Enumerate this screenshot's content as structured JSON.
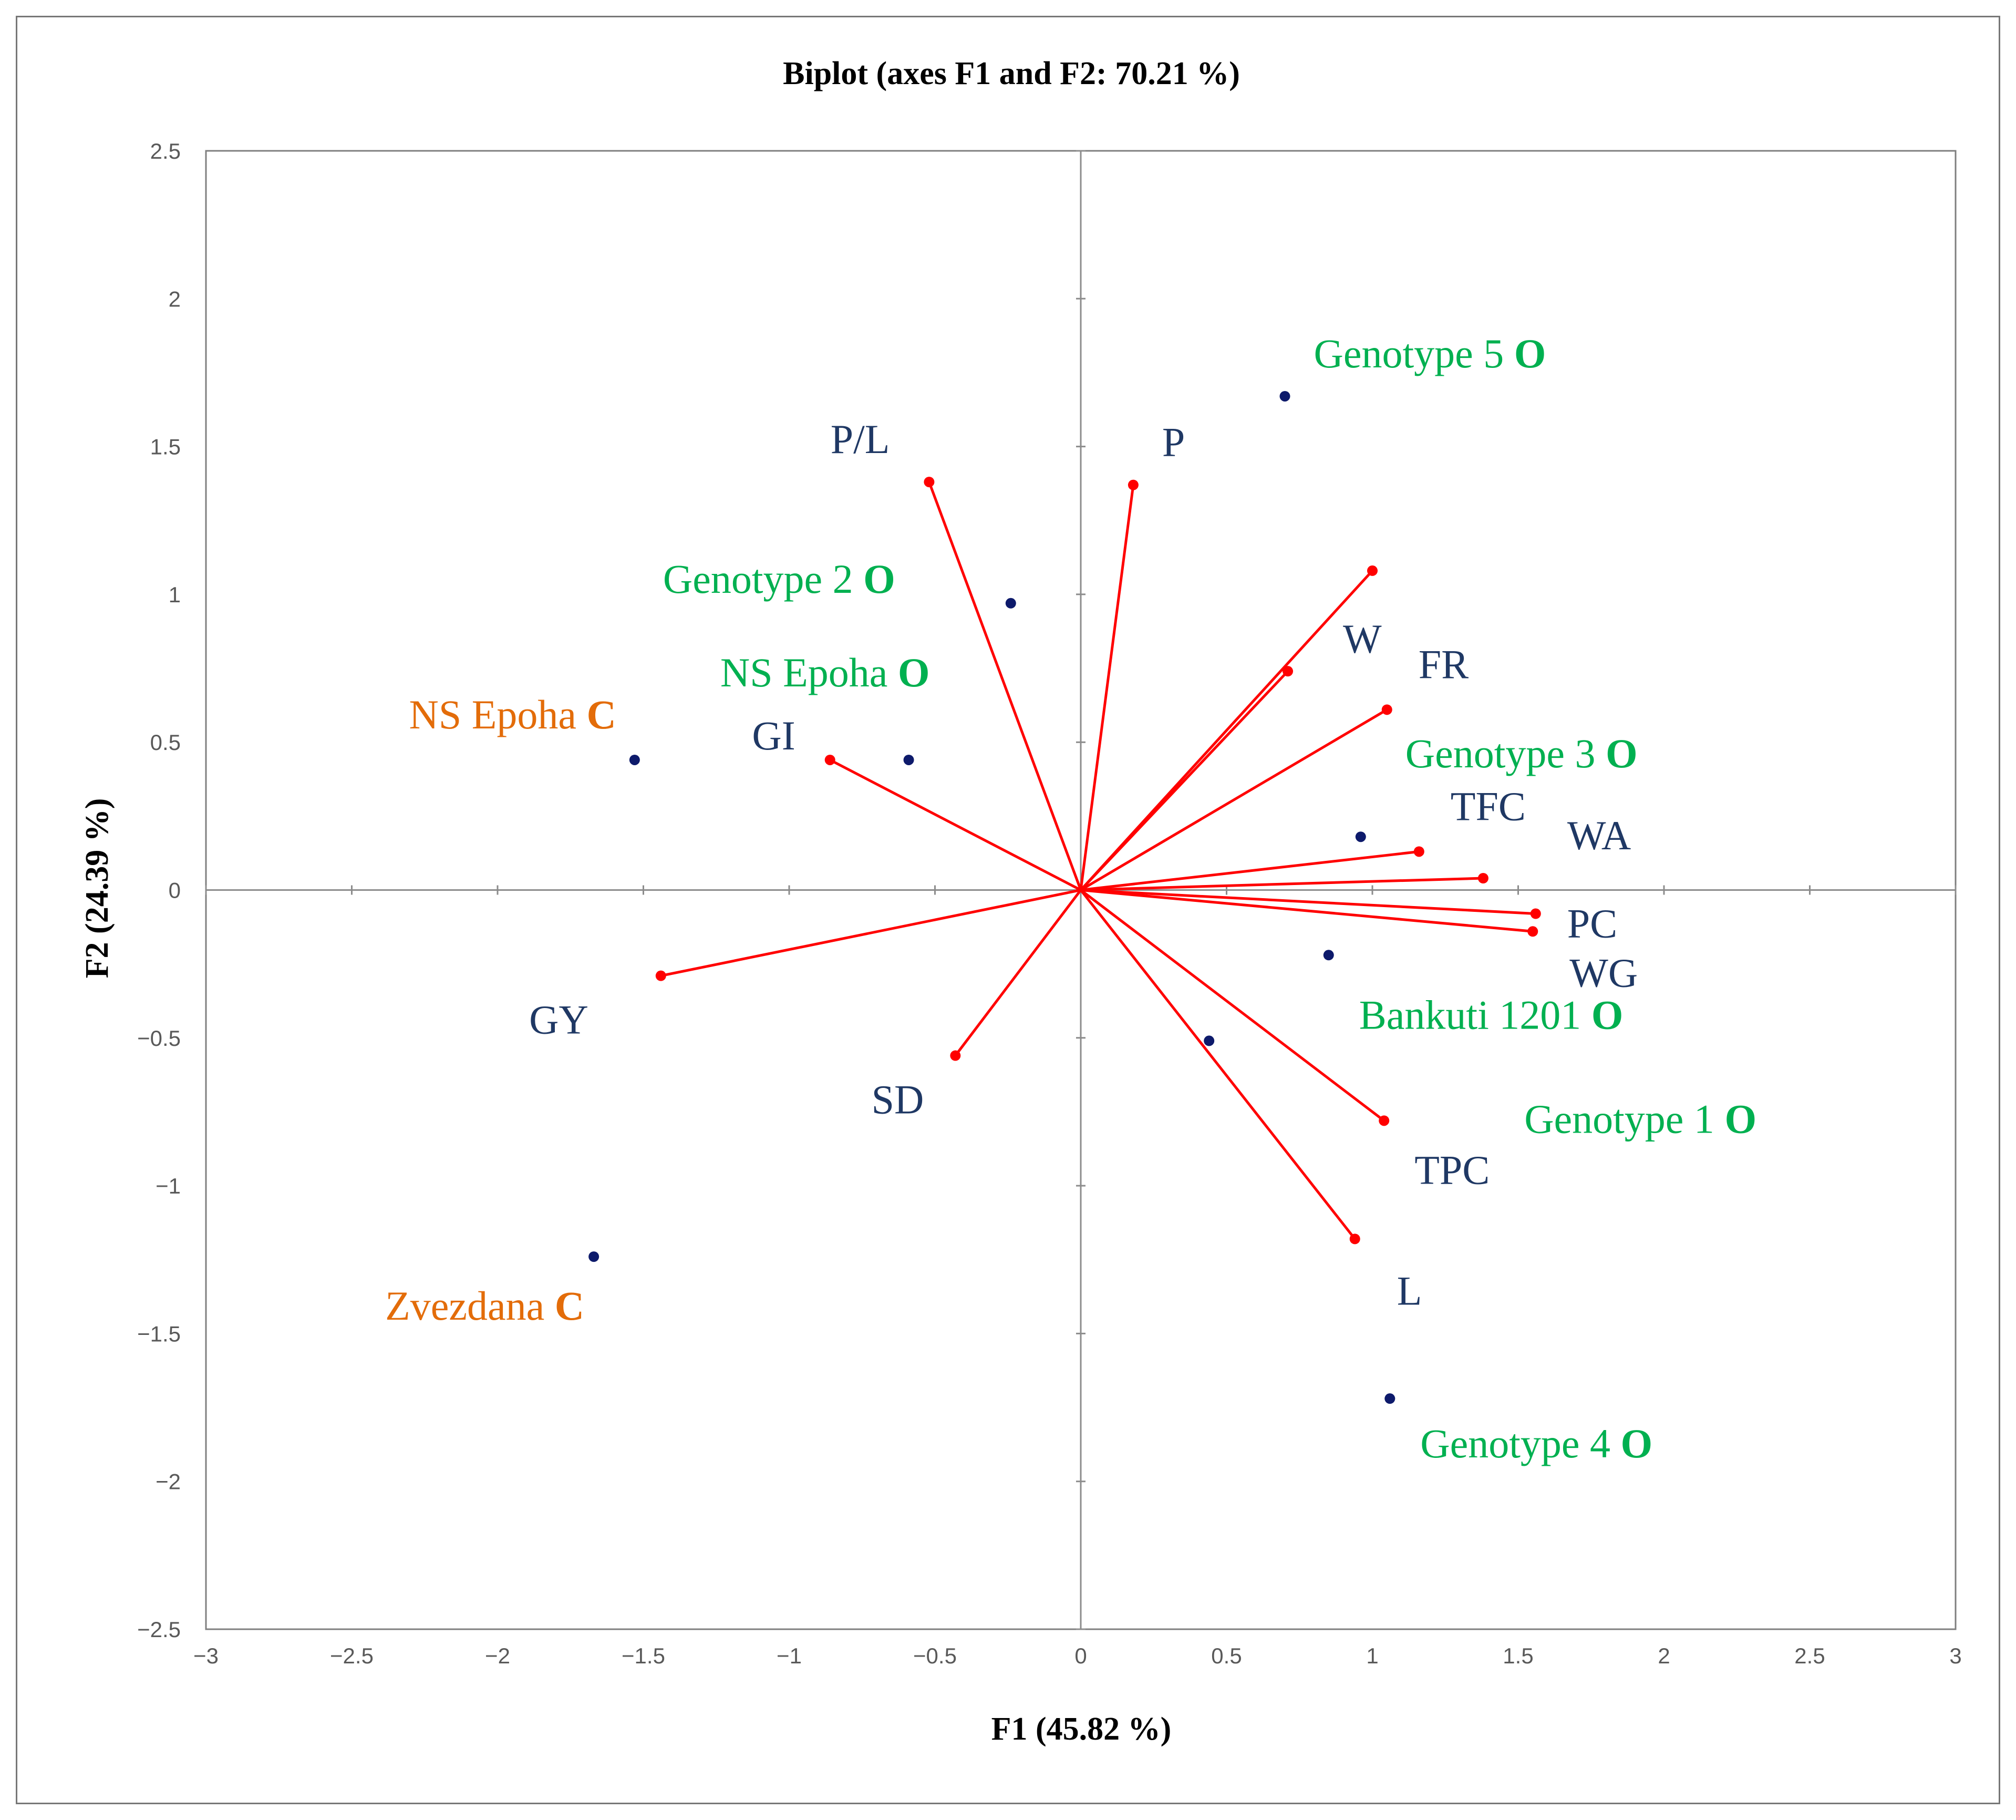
{
  "chart_data": {
    "type": "scatter",
    "title": "Biplot (axes F1 and F2: 70.21 %)",
    "xlabel": "F1 (45.82 %)",
    "ylabel": "F2 (24.39 %)",
    "xlim": [
      -3,
      3
    ],
    "ylim": [
      -2.5,
      2.5
    ],
    "x_ticks": [
      "−3",
      "−2.5",
      "−2",
      "−1.5",
      "−1",
      "−0.5",
      "0",
      "0.5",
      "1",
      "1.5",
      "2",
      "2.5",
      "3"
    ],
    "y_ticks": [
      "2.5",
      "2",
      "1.5",
      "1",
      "0.5",
      "0",
      "−0.5",
      "−1",
      "−1.5",
      "−2",
      "−2.5"
    ],
    "colors": {
      "vector": "#ff0000",
      "variable_label": "#1f3864",
      "observation_point": "#0d1a6b",
      "organic": "#00b050",
      "conventional": "#e36c09"
    },
    "variables": [
      {
        "name": "P/L",
        "x": -0.52,
        "y": 1.38
      },
      {
        "name": "P",
        "x": 0.18,
        "y": 1.37
      },
      {
        "name": "W",
        "x": 0.71,
        "y": 0.74
      },
      {
        "name": "FR",
        "x": 1.05,
        "y": 0.61
      },
      {
        "name": "TFC",
        "x": 1.16,
        "y": 0.13
      },
      {
        "name": "WA",
        "x": 1.38,
        "y": 0.04
      },
      {
        "name": "PC",
        "x": 1.56,
        "y": -0.08
      },
      {
        "name": "WG",
        "x": 1.55,
        "y": -0.14
      },
      {
        "name": "TPC",
        "x": 1.04,
        "y": -0.78
      },
      {
        "name": "L",
        "x": 0.94,
        "y": -1.18
      },
      {
        "name": "SD",
        "x": -0.43,
        "y": -0.56
      },
      {
        "name": "GY",
        "x": -1.44,
        "y": -0.29
      },
      {
        "name": "GI",
        "x": -0.86,
        "y": 0.44
      },
      {
        "name": "",
        "x": 1.0,
        "y": 1.08
      }
    ],
    "observations": [
      {
        "name": "Genotype 5",
        "suffix": "O",
        "x": 0.7,
        "y": 1.67
      },
      {
        "name": "Genotype 2",
        "suffix": "O",
        "x": -0.24,
        "y": 0.97
      },
      {
        "name": "NS Epoha",
        "suffix": "O",
        "x": -0.59,
        "y": 0.44
      },
      {
        "name": "NS Epoha",
        "suffix": "C",
        "x": -1.53,
        "y": 0.44
      },
      {
        "name": "Genotype 3",
        "suffix": "O",
        "x": 0.96,
        "y": 0.18
      },
      {
        "name": "Bankuti 1201",
        "suffix": "O",
        "x": 0.85,
        "y": -0.22
      },
      {
        "name": "Genotype 1",
        "suffix": "O",
        "x": 0.44,
        "y": -0.51
      },
      {
        "name": "Zvezdana",
        "suffix": "C",
        "x": -1.67,
        "y": -1.24
      },
      {
        "name": "Genotype 4",
        "suffix": "O",
        "x": 1.06,
        "y": -1.72
      }
    ]
  }
}
